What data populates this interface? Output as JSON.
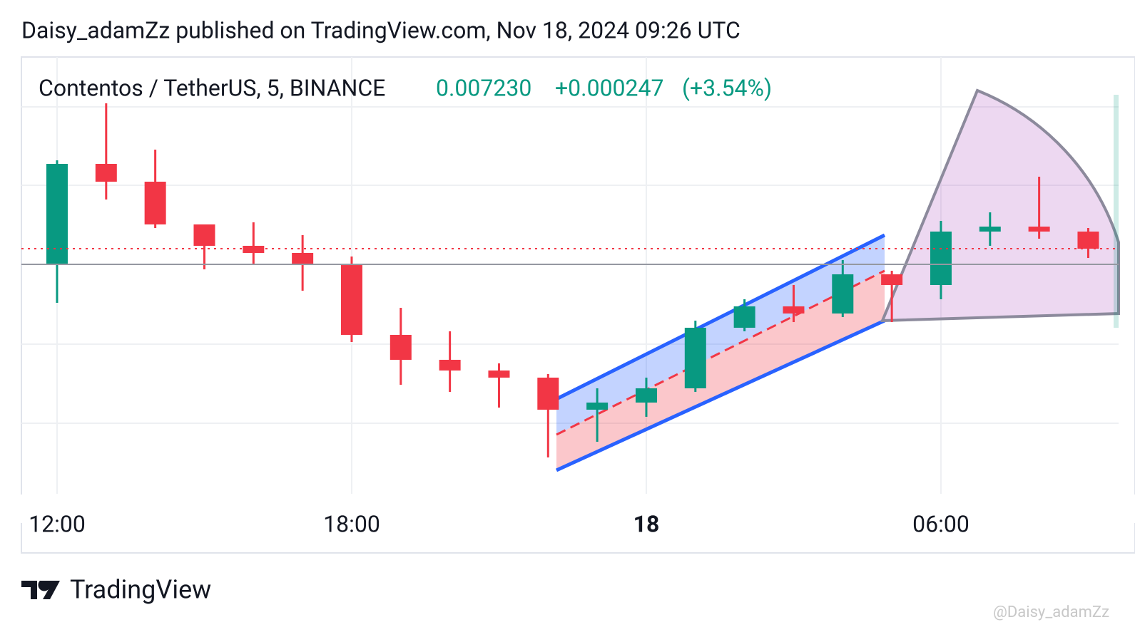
{
  "header": {
    "title": "Daisy_adamZz published on TradingView.com, Nov 18, 2024 09:26 UTC"
  },
  "chart_data": {
    "type": "candlestick",
    "symbol": "Contentos / TetherUS, 5, BINANCE",
    "last_price": {
      "value": 0.00723,
      "label": "0.007230"
    },
    "change": {
      "value": 0.000247,
      "label": "+0.000247"
    },
    "change_pct": {
      "value": 3.54,
      "label": "(+3.54%)"
    },
    "x": [
      12,
      13,
      14,
      15,
      16,
      17,
      18,
      19,
      20,
      21,
      22,
      23,
      24,
      25,
      26,
      27,
      28,
      29,
      30,
      31,
      32,
      33
    ],
    "open": [
      0.006995,
      0.008563,
      0.008283,
      0.007611,
      0.007275,
      0.007163,
      0.006972,
      0.005875,
      0.005483,
      0.005315,
      0.005203,
      0.004699,
      0.004811,
      0.005035,
      0.005987,
      0.006323,
      0.006211,
      0.006827,
      0.006659,
      0.007499,
      0.007577,
      0.007499
    ],
    "high": [
      0.008619,
      0.009515,
      0.008787,
      0.007611,
      0.007644,
      0.007443,
      0.007107,
      0.0063,
      0.005931,
      0.005427,
      0.005259,
      0.005035,
      0.005203,
      0.006099,
      0.006435,
      0.006659,
      0.007051,
      0.006883,
      0.007667,
      0.007801,
      0.008361,
      0.007555
    ],
    "low": [
      0.006379,
      0.008003,
      0.007555,
      0.006905,
      0.006972,
      0.006569,
      0.005763,
      0.005091,
      0.004979,
      0.004732,
      0.003948,
      0.004195,
      0.004587,
      0.004979,
      0.005931,
      0.006076,
      0.006155,
      0.006076,
      0.006435,
      0.007275,
      0.007387,
      0.007084
    ],
    "close": [
      0.008563,
      0.008283,
      0.007611,
      0.007275,
      0.007163,
      0.006972,
      0.005875,
      0.005483,
      0.005315,
      0.005203,
      0.004699,
      0.004811,
      0.005035,
      0.005987,
      0.006323,
      0.006211,
      0.006827,
      0.006659,
      0.007499,
      0.007577,
      0.007499,
      0.00723
    ],
    "up_color": "#089981",
    "down_color": "#f23645",
    "xlim": [
      11.274,
      33.618
    ],
    "ylim": [
      0.003377,
      0.010243
    ],
    "xticks": [
      {
        "value": 12,
        "label": "12:00"
      },
      {
        "value": 18,
        "label": "18:00"
      },
      {
        "value": 24,
        "label": "18"
      },
      {
        "value": 30,
        "label": "06:00"
      }
    ],
    "grid": true
  },
  "footer": {
    "brand": "TradingView",
    "watermark": "@Daisy_adamZz"
  }
}
